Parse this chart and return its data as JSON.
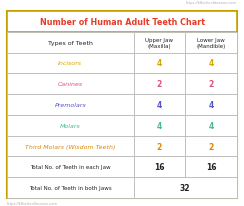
{
  "title": "Number of Human Adult Teeth Chart",
  "title_color": "#e63c28",
  "col_headers": [
    "Types of Teeth",
    "Upper Jaw\n(Maxilla)",
    "Lower Jaw\n(Mandible)"
  ],
  "rows": [
    {
      "label": "Incisors",
      "label_color": "#d4a800",
      "upper": "4",
      "upper_color": "#d4a800",
      "lower": "4",
      "lower_color": "#d4a800"
    },
    {
      "label": "Canines",
      "label_color": "#e05080",
      "upper": "2",
      "upper_color": "#e05080",
      "lower": "2",
      "lower_color": "#e05080"
    },
    {
      "label": "Premolars",
      "label_color": "#5555cc",
      "upper": "4",
      "upper_color": "#5555cc",
      "lower": "4",
      "lower_color": "#5555cc"
    },
    {
      "label": "Molars",
      "label_color": "#44bb88",
      "upper": "4",
      "upper_color": "#44bb88",
      "lower": "4",
      "lower_color": "#44bb88"
    },
    {
      "label": "Third Molars (Wisdom Teeth)",
      "label_color": "#dd8800",
      "upper": "2",
      "upper_color": "#dd8800",
      "lower": "2",
      "lower_color": "#dd8800"
    }
  ],
  "total_each": {
    "label": "Total No. of Teeth in each Jaw",
    "upper": "16",
    "lower": "16"
  },
  "total_both": {
    "label": "Total No. of Teeth in both Jaws",
    "value": "32"
  },
  "border_color": "#c8a000",
  "line_color": "#bbbbbb",
  "bg_color": "#ffffff",
  "watermark_top": "https://k8schoollessons.com",
  "watermark_bottom": "https://k8schoollessons.com",
  "fig_width": 2.44,
  "fig_height": 2.07,
  "dpi": 100
}
